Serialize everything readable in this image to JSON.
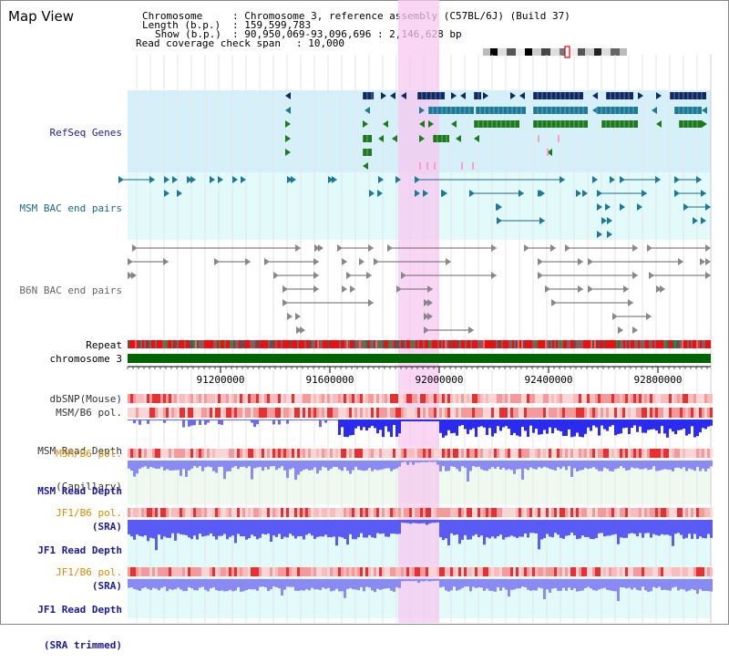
{
  "title": "Map View",
  "info": {
    "chromosome_label": "Chromosome",
    "chromosome_value": ": Chromosome 3, reference assembly (C57BL/6J) (Build 37)",
    "length_label": "Length (b.p.)",
    "length_value": ": 159,599,783",
    "show_label": "Show (b.p.)",
    "show_value": ": 90,950,069-93,096,696 : 2,146,628 bp",
    "read_cov_label": "Read coverage check span",
    "read_cov_value": ": 10,000"
  },
  "tracks": {
    "refseq": "RefSeq Genes",
    "msm_bac": "MSM BAC end pairs",
    "b6n_bac": "B6N BAC end pairs",
    "repeat": "Repeat",
    "chromosome": "chromosome 3",
    "dbsnp": "dbSNP(Mouse)",
    "msm_b6_pol_1": "MSM/B6 pol.",
    "msm_read_depth_cap_1": "MSM Read Depth",
    "msm_read_depth_cap_2": "(Capillary)",
    "msm_b6_pol_2": "MSM/B6 pol.",
    "msm_read_depth_sra_1": "MSM Read Depth",
    "msm_read_depth_sra_2": "(SRA)",
    "jf1_b6_pol": "JF1/B6 pol.",
    "jf1_read_depth_1": "JF1 Read Depth",
    "jf1_read_depth_2": "(SRA)",
    "jf1_b6_pol_2": "JF1/B6 pol.",
    "jf1_read_depth_trim_1": "JF1 Read Depth",
    "jf1_read_depth_trim_2": "(SRA trimmed)"
  },
  "axis": {
    "ticks": [
      "91200000",
      "91600000",
      "92000000",
      "92400000",
      "92800000"
    ]
  },
  "colors": {
    "refseq_bg": "#d6f0fa",
    "msm_bac_bg": "#e2fafa",
    "highlight": "#f6c8f0",
    "chromosome_bar": "#006400",
    "gene_dark": "#0d2a66",
    "gene_teal": "#1a7a9a",
    "gene_green": "#1e7a1e",
    "bac_line": "#1a6a8a",
    "b6n_line": "#666666",
    "orange_label": "#d98c00",
    "blue_label": "#1a1aa0",
    "depth_blue": "#4a4aff",
    "depth_light": "#9a9aff",
    "snp_pink": "#f7b3b3",
    "snp_red": "#e01010"
  }
}
